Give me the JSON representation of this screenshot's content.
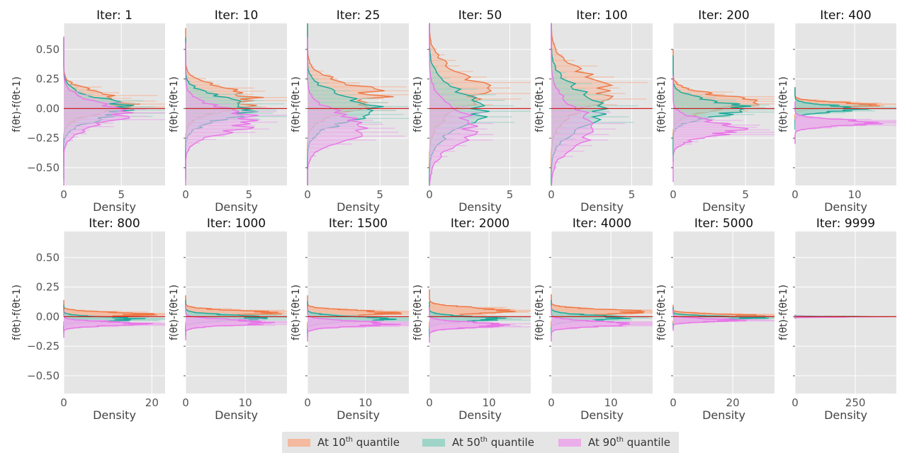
{
  "chart_data": {
    "type": "histogram-grid",
    "ylabel": "f(θt)-f(θt-1)",
    "xlabel": "Density",
    "ylim": [
      -0.65,
      0.72
    ],
    "yticks": [
      0.5,
      0.25,
      0.0,
      -0.25,
      -0.5
    ],
    "ytick_labels": [
      "0.50",
      "0.25",
      "0.00",
      "−0.25",
      "−0.50"
    ],
    "reference_line_y": 0.0,
    "panels": [
      {
        "title": "Iter: 1",
        "xmax": 8.8,
        "xticks": [
          0,
          5
        ],
        "series": [
          {
            "center": 0.05,
            "spread": 0.18,
            "peak": 5.5
          },
          {
            "center": 0.0,
            "spread": 0.2,
            "peak": 5.2
          },
          {
            "center": -0.05,
            "spread": 0.22,
            "peak": 5.0
          }
        ]
      },
      {
        "title": "Iter: 10",
        "xmax": 8.0,
        "xticks": [
          0,
          5
        ],
        "series": [
          {
            "center": 0.08,
            "spread": 0.2,
            "peak": 5.5
          },
          {
            "center": 0.0,
            "spread": 0.2,
            "peak": 5.3
          },
          {
            "center": -0.1,
            "spread": 0.22,
            "peak": 5.2
          }
        ]
      },
      {
        "title": "Iter: 25",
        "xmax": 7.0,
        "xticks": [
          0,
          5
        ],
        "series": [
          {
            "center": 0.1,
            "spread": 0.25,
            "peak": 4.8
          },
          {
            "center": 0.0,
            "spread": 0.25,
            "peak": 4.5
          },
          {
            "center": -0.15,
            "spread": 0.25,
            "peak": 4.0
          }
        ]
      },
      {
        "title": "Iter: 50",
        "xmax": 6.3,
        "xticks": [
          0,
          5
        ],
        "series": [
          {
            "center": 0.15,
            "spread": 0.35,
            "peak": 3.2
          },
          {
            "center": 0.0,
            "spread": 0.35,
            "peak": 3.2
          },
          {
            "center": -0.15,
            "spread": 0.35,
            "peak": 2.6
          }
        ]
      },
      {
        "title": "Iter: 100",
        "xmax": 6.3,
        "xticks": [
          0,
          5
        ],
        "series": [
          {
            "center": 0.15,
            "spread": 0.35,
            "peak": 3.2
          },
          {
            "center": 0.0,
            "spread": 0.35,
            "peak": 3.0
          },
          {
            "center": -0.15,
            "spread": 0.35,
            "peak": 2.6
          }
        ]
      },
      {
        "title": "Iter: 200",
        "xmax": 7.0,
        "xticks": [
          0,
          5
        ],
        "series": [
          {
            "center": 0.05,
            "spread": 0.15,
            "peak": 5.0
          },
          {
            "center": 0.0,
            "spread": 0.15,
            "peak": 4.6
          },
          {
            "center": -0.17,
            "spread": 0.15,
            "peak": 4.2
          }
        ]
      },
      {
        "title": "Iter: 400",
        "xmax": 17.0,
        "xticks": [
          0,
          10
        ],
        "series": [
          {
            "center": 0.03,
            "spread": 0.05,
            "peak": 12.0
          },
          {
            "center": 0.0,
            "spread": 0.06,
            "peak": 10.5
          },
          {
            "center": -0.12,
            "spread": 0.06,
            "peak": 12.5
          }
        ]
      },
      {
        "title": "Iter: 800",
        "xmax": 23.0,
        "xticks": [
          0,
          20
        ],
        "series": [
          {
            "center": 0.02,
            "spread": 0.04,
            "peak": 18.0
          },
          {
            "center": -0.02,
            "spread": 0.04,
            "peak": 16.0
          },
          {
            "center": -0.06,
            "spread": 0.04,
            "peak": 17.0
          }
        ]
      },
      {
        "title": "Iter: 1000",
        "xmax": 17.0,
        "xticks": [
          0,
          10
        ],
        "series": [
          {
            "center": 0.03,
            "spread": 0.05,
            "peak": 14.0
          },
          {
            "center": -0.01,
            "spread": 0.05,
            "peak": 13.0
          },
          {
            "center": -0.05,
            "spread": 0.05,
            "peak": 14.0
          }
        ]
      },
      {
        "title": "Iter: 1500",
        "xmax": 17.5,
        "xticks": [
          0,
          10
        ],
        "series": [
          {
            "center": 0.03,
            "spread": 0.05,
            "peak": 14.0
          },
          {
            "center": -0.02,
            "spread": 0.05,
            "peak": 13.0
          },
          {
            "center": -0.06,
            "spread": 0.05,
            "peak": 13.5
          }
        ]
      },
      {
        "title": "Iter: 2000",
        "xmax": 17.0,
        "xticks": [
          0,
          10
        ],
        "series": [
          {
            "center": 0.05,
            "spread": 0.06,
            "peak": 12.5
          },
          {
            "center": -0.02,
            "spread": 0.05,
            "peak": 11.0
          },
          {
            "center": -0.07,
            "spread": 0.05,
            "peak": 12.0
          }
        ]
      },
      {
        "title": "Iter: 4000",
        "xmax": 17.0,
        "xticks": [
          0,
          10
        ],
        "series": [
          {
            "center": 0.04,
            "spread": 0.05,
            "peak": 13.5
          },
          {
            "center": -0.01,
            "spread": 0.05,
            "peak": 12.0
          },
          {
            "center": -0.06,
            "spread": 0.05,
            "peak": 13.0
          }
        ]
      },
      {
        "title": "Iter: 5000",
        "xmax": 34.0,
        "xticks": [
          0,
          20
        ],
        "series": [
          {
            "center": 0.01,
            "spread": 0.03,
            "peak": 26.0
          },
          {
            "center": -0.01,
            "spread": 0.03,
            "peak": 27.0
          },
          {
            "center": -0.03,
            "spread": 0.03,
            "peak": 20.0
          }
        ]
      },
      {
        "title": "Iter: 9999",
        "xmax": 420.0,
        "xticks": [
          0,
          250
        ],
        "series": [
          {
            "center": 0.0,
            "spread": 0.005,
            "peak": 300.0
          },
          {
            "center": 0.0,
            "spread": 0.005,
            "peak": 250.0
          },
          {
            "center": -0.003,
            "spread": 0.005,
            "peak": 200.0
          }
        ]
      }
    ],
    "legend": [
      {
        "name": "At 10th quantile",
        "prefix": "At 10",
        "sup": "th",
        "suffix": " quantile",
        "fill": "#f4b99e",
        "line": "#ee7743"
      },
      {
        "name": "At 50th quantile",
        "prefix": "At 50",
        "sup": "th",
        "suffix": " quantile",
        "fill": "#9fd4c8",
        "line": "#1aa797"
      },
      {
        "name": "At 90th quantile",
        "prefix": "At 90",
        "sup": "th",
        "suffix": " quantile",
        "fill": "#eaaeea",
        "line": "#e874e8"
      }
    ],
    "colors": {
      "background": "#e5e5e5",
      "grid": "#ffffff",
      "reference_line": "#cc1f1f"
    }
  }
}
